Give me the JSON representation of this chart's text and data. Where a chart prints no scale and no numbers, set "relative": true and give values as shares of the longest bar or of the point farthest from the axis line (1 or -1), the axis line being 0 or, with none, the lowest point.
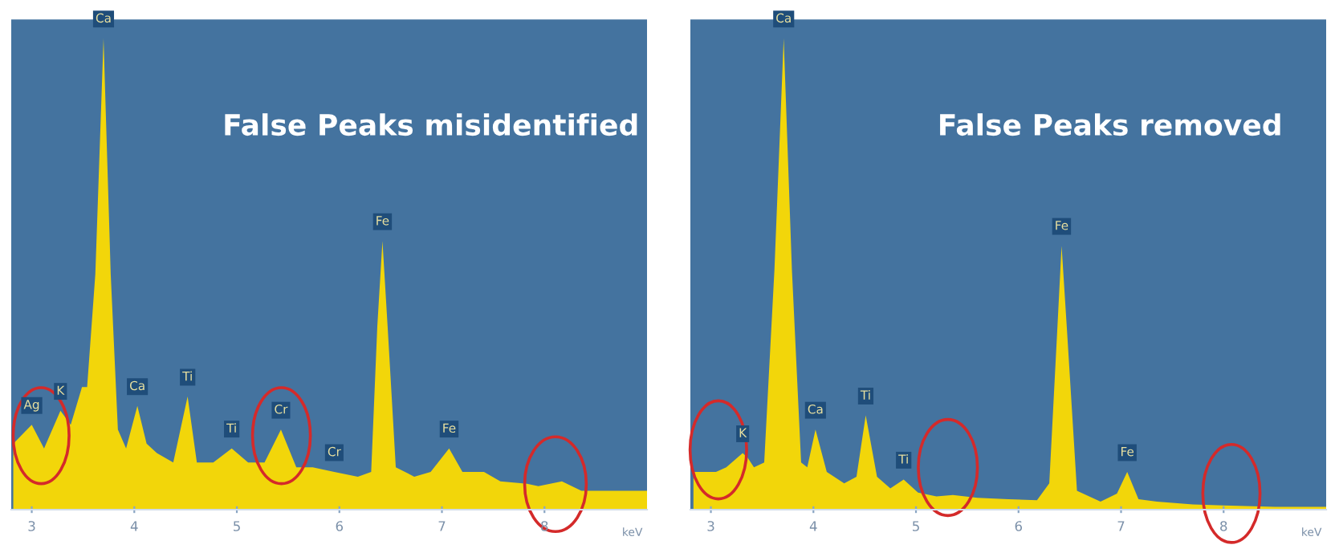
{
  "chart_data": [
    {
      "type": "area",
      "title": "False Peaks misidentified",
      "xlabel": "keV",
      "relative": true,
      "xlim": [
        2.8,
        9.0
      ],
      "xticks": [
        3,
        4,
        5,
        6,
        7,
        8
      ],
      "grid": false,
      "x": [
        2.82,
        3.0,
        3.12,
        3.28,
        3.38,
        3.49,
        3.54,
        3.62,
        3.7,
        3.77,
        3.84,
        3.92,
        4.03,
        4.12,
        4.22,
        4.38,
        4.52,
        4.61,
        4.77,
        4.95,
        5.11,
        5.27,
        5.43,
        5.58,
        5.74,
        5.95,
        6.18,
        6.31,
        6.37,
        6.42,
        6.47,
        6.55,
        6.73,
        6.89,
        7.07,
        7.2,
        7.41,
        7.57,
        7.83,
        7.94,
        8.17,
        8.36,
        8.67,
        9.0
      ],
      "series": [
        {
          "color": "#f2d60a",
          "values": [
            0.14,
            0.18,
            0.13,
            0.21,
            0.18,
            0.26,
            0.26,
            0.5,
            1.0,
            0.5,
            0.17,
            0.13,
            0.22,
            0.14,
            0.12,
            0.1,
            0.24,
            0.1,
            0.1,
            0.13,
            0.1,
            0.1,
            0.17,
            0.09,
            0.09,
            0.08,
            0.07,
            0.08,
            0.39,
            0.57,
            0.39,
            0.09,
            0.07,
            0.08,
            0.13,
            0.08,
            0.08,
            0.06,
            0.055,
            0.05,
            0.06,
            0.04,
            0.04,
            0.04
          ]
        }
      ],
      "annotations": [
        {
          "text": "Ag",
          "x": 3.0,
          "y": 0.18
        },
        {
          "text": "K",
          "x": 3.28,
          "y": 0.21
        },
        {
          "text": "Ca",
          "x": 3.7,
          "y": 1.0
        },
        {
          "text": "Ca",
          "x": 4.03,
          "y": 0.22
        },
        {
          "text": "Ti",
          "x": 4.52,
          "y": 0.24
        },
        {
          "text": "Ti",
          "x": 4.95,
          "y": 0.13
        },
        {
          "text": "Cr",
          "x": 5.43,
          "y": 0.17
        },
        {
          "text": "Cr",
          "x": 5.95,
          "y": 0.08
        },
        {
          "text": "Fe",
          "x": 6.42,
          "y": 0.57
        },
        {
          "text": "Fe",
          "x": 7.07,
          "y": 0.13
        }
      ]
    },
    {
      "type": "area",
      "title": "False Peaks removed",
      "xlabel": "keV",
      "relative": true,
      "xlim": [
        2.8,
        9.0
      ],
      "xticks": [
        3,
        4,
        5,
        6,
        7,
        8
      ],
      "grid": false,
      "x": [
        2.83,
        3.05,
        3.15,
        3.31,
        3.36,
        3.42,
        3.52,
        3.62,
        3.71,
        3.79,
        3.88,
        3.94,
        4.02,
        4.13,
        4.3,
        4.42,
        4.51,
        4.62,
        4.75,
        4.88,
        5.02,
        5.2,
        5.36,
        5.6,
        5.9,
        6.18,
        6.3,
        6.38,
        6.42,
        6.47,
        6.57,
        6.8,
        6.96,
        7.06,
        7.17,
        7.35,
        7.7,
        8.0,
        8.5,
        9.0
      ],
      "series": [
        {
          "color": "#f2d60a",
          "values": [
            0.08,
            0.08,
            0.09,
            0.12,
            0.11,
            0.09,
            0.1,
            0.51,
            1.0,
            0.51,
            0.1,
            0.09,
            0.17,
            0.08,
            0.056,
            0.07,
            0.2,
            0.07,
            0.045,
            0.064,
            0.036,
            0.028,
            0.031,
            0.025,
            0.022,
            0.02,
            0.056,
            0.39,
            0.56,
            0.39,
            0.04,
            0.017,
            0.034,
            0.08,
            0.022,
            0.017,
            0.011,
            0.009,
            0.006,
            0.006
          ]
        }
      ],
      "annotations": [
        {
          "text": "K",
          "x": 3.31,
          "y": 0.12
        },
        {
          "text": "Ca",
          "x": 3.71,
          "y": 1.0
        },
        {
          "text": "Ca",
          "x": 4.02,
          "y": 0.17
        },
        {
          "text": "Ti",
          "x": 4.51,
          "y": 0.2
        },
        {
          "text": "Ti",
          "x": 4.88,
          "y": 0.064
        },
        {
          "text": "Fe",
          "x": 6.42,
          "y": 0.56
        },
        {
          "text": "Fe",
          "x": 7.06,
          "y": 0.08
        }
      ]
    }
  ]
}
